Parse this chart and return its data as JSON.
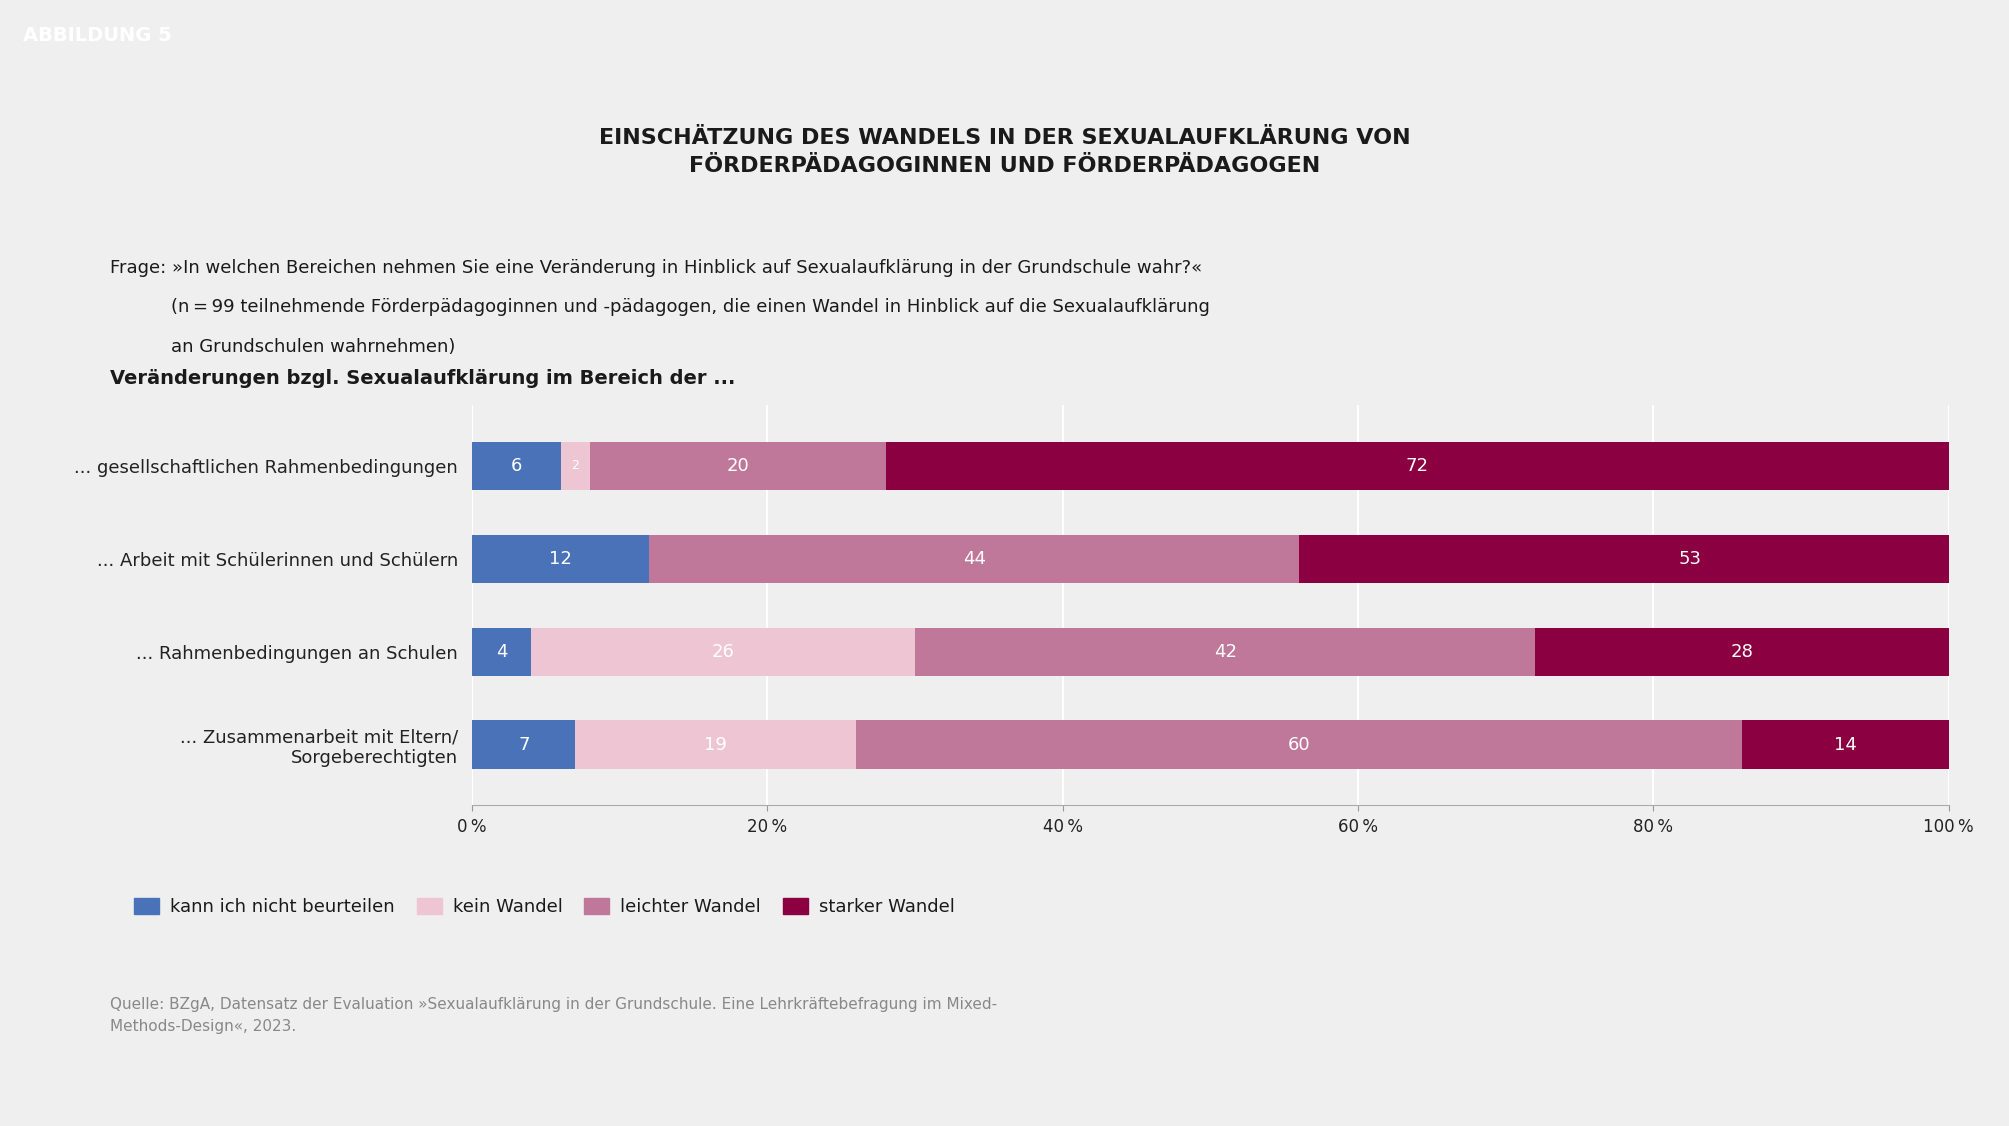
{
  "title": "EINSCHÄTZUNG DES WANDELS IN DER SEXUALAUFKLÄRUNG VON\nFÖRDERPÄDAGOGINNEN UND FÖRDERPÄDAGOGEN",
  "subtitle_line1": "Frage: »In welchen Bereichen nehmen Sie eine Veränderung in Hinblick auf Sexualaufklärung in der Grundschule wahr?«",
  "subtitle_line2": "(n = 99 teilnehmende Förderpädagoginnen und -pädagogen, die einen Wandel in Hinblick auf die Sexualaufklärung",
  "subtitle_line3": "an Grundschulen wahrnehmen)",
  "section_label": "Veränderungen bzgl. Sexualaufklärung im Bereich der ...",
  "categories": [
    "... gesellschaftlichen Rahmenbedingungen",
    "... Arbeit mit Schülerinnen und Schülern",
    "... Rahmenbedingungen an Schulen",
    "... Zusammenarbeit mit Eltern/\nSorgeberechtigten"
  ],
  "data": {
    "kann_ich_nicht": [
      6,
      12,
      4,
      7
    ],
    "kein_wandel": [
      2,
      0,
      26,
      19
    ],
    "leichter_wandel": [
      20,
      44,
      42,
      60
    ],
    "starker_wandel": [
      72,
      53,
      28,
      14
    ]
  },
  "colors": {
    "kann_ich_nicht": "#4A72B8",
    "kein_wandel": "#EEC5D3",
    "leichter_wandel": "#C0789A",
    "starker_wandel": "#8B0040"
  },
  "legend_labels": [
    "kann ich nicht beurteilen",
    "kein Wandel",
    "leichter Wandel",
    "starker Wandel"
  ],
  "xticks": [
    0,
    20,
    40,
    60,
    80,
    100
  ],
  "xtick_labels": [
    "0 %",
    "20 %",
    "40 %",
    "60 %",
    "80 %",
    "100 %"
  ],
  "abbildung_label": "ABBILDUNG 5",
  "source_text": "Quelle: BZgA, Datensatz der Evaluation »Sexualaufklärung in der Grundschule. Eine Lehrkräftebefragung im Mixed-\nMethods-Design«, 2023.",
  "bg_color": "#EFEFEF",
  "header_bg": "#1A1A1A",
  "header_text_color": "#FFFFFF",
  "bar_label_fontsize": 13,
  "title_fontsize": 16,
  "subtitle_fontsize": 13,
  "section_fontsize": 14,
  "tick_fontsize": 12,
  "legend_fontsize": 13,
  "category_fontsize": 13,
  "source_fontsize": 11,
  "abbildung_fontsize": 14
}
